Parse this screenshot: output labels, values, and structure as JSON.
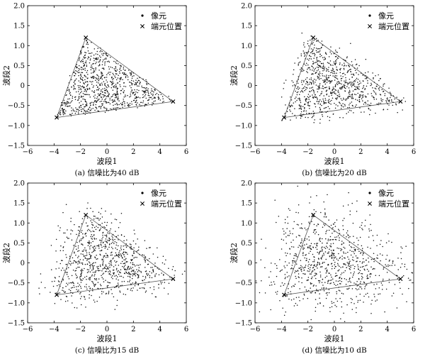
{
  "chart_data": [
    {
      "type": "scatter",
      "caption": "(a) 信噪比为40 dB",
      "xlabel": "波段1",
      "ylabel": "波段2",
      "xlim": [
        -6,
        6
      ],
      "ylim": [
        -1.5,
        2.0
      ],
      "xticks": [
        "−6",
        "−4",
        "−2",
        "0",
        "2",
        "4",
        "6"
      ],
      "yticks": [
        "−1.5",
        "−1.0",
        "−0.5",
        "0",
        "0.5",
        "1.0",
        "1.5",
        "2.0"
      ],
      "legend": [
        "像元",
        "端元位置"
      ],
      "legend_position": "top-right",
      "snr_db": 40,
      "endmembers": [
        [
          -1.6,
          1.2
        ],
        [
          -3.8,
          -0.8
        ],
        [
          5.0,
          -0.4
        ]
      ],
      "pixel_count": 900
    },
    {
      "type": "scatter",
      "caption": "(b) 信噪比为20 dB",
      "xlabel": "波段1",
      "ylabel": "波段2",
      "xlim": [
        -6,
        6
      ],
      "ylim": [
        -1.5,
        2.0
      ],
      "xticks": [
        "−6",
        "−4",
        "−2",
        "0",
        "2",
        "4",
        "6"
      ],
      "yticks": [
        "−1.5",
        "−1.0",
        "−0.5",
        "0",
        "0.5",
        "1.0",
        "1.5",
        "2.0"
      ],
      "legend": [
        "像元",
        "端元位置"
      ],
      "legend_position": "top-right",
      "snr_db": 20,
      "endmembers": [
        [
          -1.6,
          1.2
        ],
        [
          -3.8,
          -0.8
        ],
        [
          5.0,
          -0.4
        ]
      ],
      "pixel_count": 900
    },
    {
      "type": "scatter",
      "caption": "(c) 信噪比为15 dB",
      "xlabel": "波段1",
      "ylabel": "波段2",
      "xlim": [
        -6,
        6
      ],
      "ylim": [
        -1.5,
        2.0
      ],
      "xticks": [
        "−6",
        "−4",
        "−2",
        "0",
        "2",
        "4",
        "6"
      ],
      "yticks": [
        "−1.5",
        "−1.0",
        "−0.5",
        "0",
        "0.5",
        "1.0",
        "1.5",
        "2.0"
      ],
      "legend": [
        "像元",
        "端元位置"
      ],
      "legend_position": "top-right",
      "snr_db": 15,
      "endmembers": [
        [
          -1.6,
          1.2
        ],
        [
          -3.8,
          -0.8
        ],
        [
          5.0,
          -0.4
        ]
      ],
      "pixel_count": 900
    },
    {
      "type": "scatter",
      "caption": "(d) 信噪比为10 dB",
      "xlabel": "波段1",
      "ylabel": "波段2",
      "xlim": [
        -6,
        6
      ],
      "ylim": [
        -1.5,
        2.0
      ],
      "xticks": [
        "−6",
        "−4",
        "−2",
        "0",
        "2",
        "4",
        "6"
      ],
      "yticks": [
        "−1.5",
        "−1.0",
        "−0.5",
        "0",
        "0.5",
        "1.0",
        "1.5",
        "2.0"
      ],
      "legend": [
        "像元",
        "端元位置"
      ],
      "legend_position": "top-right",
      "snr_db": 10,
      "endmembers": [
        [
          -1.6,
          1.2
        ],
        [
          -3.8,
          -0.8
        ],
        [
          5.0,
          -0.4
        ]
      ],
      "pixel_count": 900
    }
  ]
}
